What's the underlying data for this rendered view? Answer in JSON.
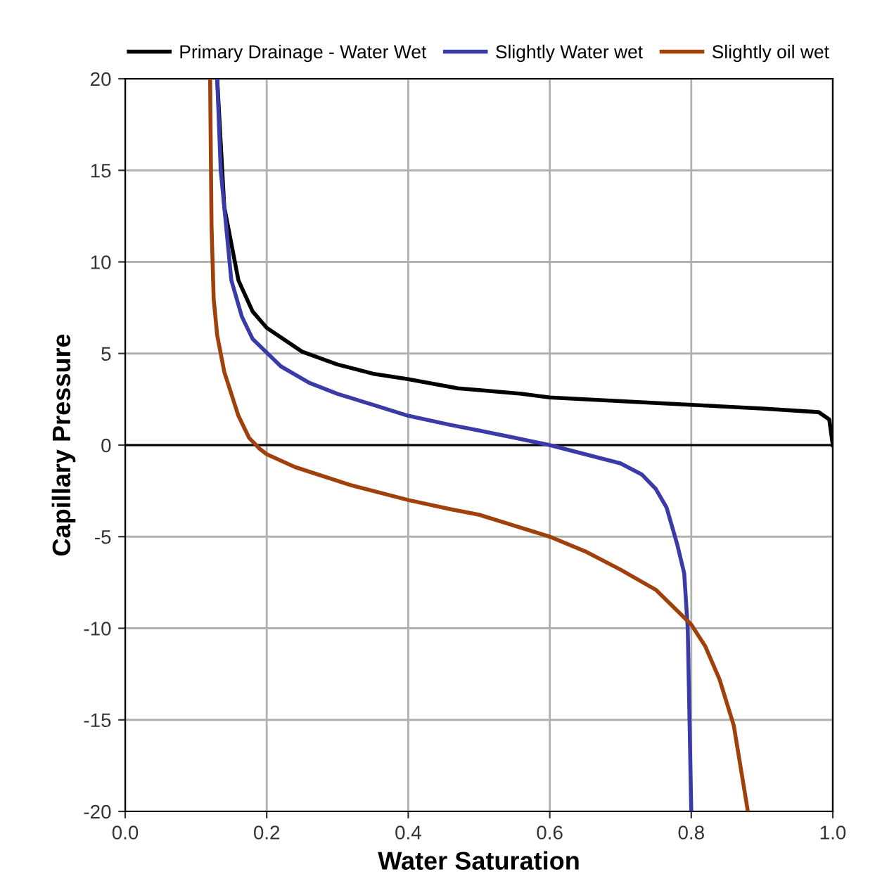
{
  "chart_data": {
    "type": "line",
    "xlabel": "Water Saturation",
    "ylabel": "Capillary Pressure",
    "xlim": [
      0.0,
      1.0
    ],
    "xticks": [
      {
        "value": 0,
        "label": "0.0"
      },
      0.2,
      0.4,
      0.6,
      0.8,
      {
        "value": 1,
        "label": "1.0"
      }
    ],
    "ylim": [
      -20,
      20
    ],
    "yticks": [
      -20,
      -15,
      -10,
      -5,
      0,
      5,
      10,
      15,
      20
    ],
    "grid": true,
    "legend": "top",
    "marker": "none",
    "line_style": "solid",
    "ref_lines": [
      {
        "axis": "y",
        "value": 0,
        "color": "#000000"
      }
    ],
    "series": [
      {
        "name": "Primary Drainage - Water Wet",
        "color": "#000000",
        "x": [
          0.13,
          0.14,
          0.16,
          0.18,
          0.2,
          0.25,
          0.3,
          0.35,
          0.4,
          0.47,
          0.5,
          0.56,
          0.6,
          0.7,
          0.8,
          0.9,
          0.98,
          0.995,
          1.0
        ],
        "values": [
          20,
          13,
          9,
          7.3,
          6.4,
          5.1,
          4.4,
          3.9,
          3.6,
          3.1,
          3.0,
          2.8,
          2.6,
          2.4,
          2.2,
          2.0,
          1.8,
          1.4,
          0
        ]
      },
      {
        "name": "Slightly Water wet",
        "color": "#3a3aa8",
        "x": [
          0.13,
          0.135,
          0.15,
          0.165,
          0.18,
          0.22,
          0.26,
          0.3,
          0.35,
          0.4,
          0.46,
          0.5,
          0.55,
          0.6,
          0.65,
          0.7,
          0.73,
          0.75,
          0.765,
          0.78,
          0.79,
          0.795,
          0.797,
          0.8
        ],
        "values": [
          20,
          15,
          9,
          7,
          5.8,
          4.3,
          3.4,
          2.8,
          2.2,
          1.6,
          1.1,
          0.8,
          0.4,
          0,
          -0.5,
          -1.0,
          -1.6,
          -2.4,
          -3.4,
          -5.4,
          -7,
          -10,
          -14,
          -20
        ]
      },
      {
        "name": "Slightly oil wet",
        "color": "#a0400a",
        "x": [
          0.12,
          0.122,
          0.125,
          0.13,
          0.14,
          0.16,
          0.175,
          0.19,
          0.2,
          0.24,
          0.32,
          0.4,
          0.46,
          0.5,
          0.55,
          0.6,
          0.65,
          0.7,
          0.75,
          0.8,
          0.82,
          0.84,
          0.86,
          0.88
        ],
        "values": [
          20,
          12,
          8,
          6,
          4,
          1.6,
          0.4,
          -0.2,
          -0.5,
          -1.2,
          -2.2,
          -3.0,
          -3.5,
          -3.8,
          -4.4,
          -5.0,
          -5.8,
          -6.8,
          -7.9,
          -9.8,
          -11,
          -12.8,
          -15.3,
          -20
        ]
      }
    ]
  }
}
